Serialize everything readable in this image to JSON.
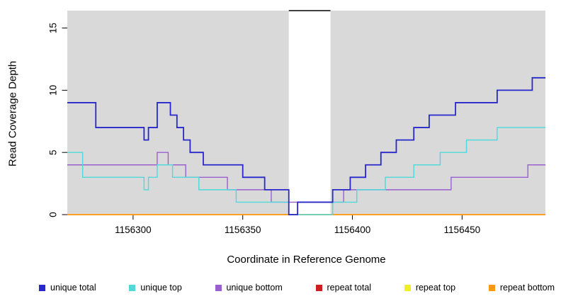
{
  "chart_data": {
    "type": "line",
    "subtype": "step-coverage",
    "title": "",
    "xlabel": "Coordinate in Reference Genome",
    "ylabel": "Read Coverage Depth",
    "xlim": [
      1156270,
      1156488
    ],
    "ylim": [
      0,
      16.4
    ],
    "xticks": [
      1156300,
      1156350,
      1156400,
      1156450
    ],
    "yticks": [
      0,
      5,
      10,
      15
    ],
    "panel_color": "#d9d9d9",
    "gap_region": {
      "start": 1156371,
      "end": 1156390,
      "fill": "#ffffff",
      "top_marker_color": "#000000"
    },
    "grid": "off",
    "legend_position": "bottom",
    "legend": [
      {
        "label": "unique total",
        "color": "#2727cc"
      },
      {
        "label": "unique top",
        "color": "#4fd9d9"
      },
      {
        "label": "unique bottom",
        "color": "#9a5fd0"
      },
      {
        "label": "repeat total",
        "color": "#cc2020"
      },
      {
        "label": "repeat top",
        "color": "#f0f020"
      },
      {
        "label": "repeat bottom",
        "color": "#ff9814"
      }
    ],
    "series": [
      {
        "name": "repeat total",
        "color": "#cc2020",
        "width": 1.4,
        "steps": [
          [
            1156270,
            0
          ]
        ]
      },
      {
        "name": "repeat top",
        "color": "#f0f020",
        "width": 1.4,
        "steps": [
          [
            1156270,
            0
          ]
        ]
      },
      {
        "name": "repeat bottom",
        "color": "#ff9814",
        "width": 1.4,
        "steps": [
          [
            1156270,
            0
          ]
        ]
      },
      {
        "name": "unique bottom",
        "color": "#9a5fd0",
        "width": 1.4,
        "steps": [
          [
            1156270,
            4
          ],
          [
            1156311,
            5
          ],
          [
            1156316,
            4
          ],
          [
            1156324,
            3
          ],
          [
            1156343,
            2
          ],
          [
            1156363,
            1
          ],
          [
            1156396,
            2
          ],
          [
            1156445,
            3
          ],
          [
            1156480,
            4
          ]
        ]
      },
      {
        "name": "unique top",
        "color": "#4fd9d9",
        "width": 1.4,
        "steps": [
          [
            1156270,
            5
          ],
          [
            1156277,
            3
          ],
          [
            1156305,
            2
          ],
          [
            1156307,
            3
          ],
          [
            1156311,
            4
          ],
          [
            1156318,
            3
          ],
          [
            1156330,
            2
          ],
          [
            1156347,
            1
          ],
          [
            1156371,
            0
          ],
          [
            1156391,
            1
          ],
          [
            1156402,
            2
          ],
          [
            1156415,
            3
          ],
          [
            1156428,
            4
          ],
          [
            1156440,
            5
          ],
          [
            1156452,
            6
          ],
          [
            1156466,
            7
          ]
        ]
      },
      {
        "name": "unique total",
        "color": "#2727cc",
        "width": 1.8,
        "steps": [
          [
            1156270,
            9
          ],
          [
            1156283,
            7
          ],
          [
            1156305,
            6
          ],
          [
            1156307,
            7
          ],
          [
            1156311,
            9
          ],
          [
            1156317,
            8
          ],
          [
            1156320,
            7
          ],
          [
            1156323,
            6
          ],
          [
            1156326,
            5
          ],
          [
            1156332,
            4
          ],
          [
            1156350,
            3
          ],
          [
            1156360,
            2
          ],
          [
            1156371,
            0
          ],
          [
            1156375,
            1
          ],
          [
            1156391,
            2
          ],
          [
            1156399,
            3
          ],
          [
            1156406,
            4
          ],
          [
            1156413,
            5
          ],
          [
            1156420,
            6
          ],
          [
            1156428,
            7
          ],
          [
            1156435,
            8
          ],
          [
            1156447,
            9
          ],
          [
            1156466,
            10
          ],
          [
            1156482,
            11
          ]
        ]
      }
    ]
  }
}
